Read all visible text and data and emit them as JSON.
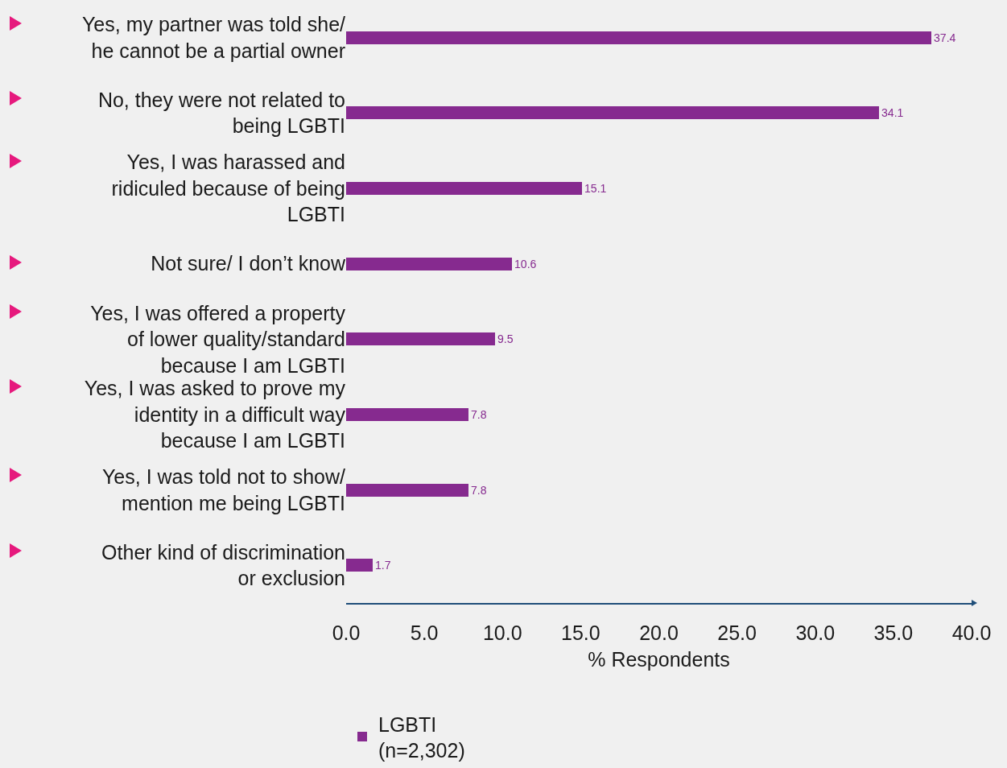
{
  "chart_data": {
    "type": "bar",
    "orientation": "horizontal",
    "xlabel": "% Respondents",
    "categories": [
      "Yes, my partner was told she/ he cannot be a partial owner",
      "No, they were not related to being LGBTI",
      "Yes, I was harassed and ridiculed because of being LGBTI",
      "Not sure/ I don’t know",
      "Yes, I was offered a property of lower quality/standard because I am LGBTI",
      "Yes, I was asked to prove my identity in a difficult way because I am LGBTI",
      "Yes, I was told not to show/ mention me being LGBTI",
      "Other kind of discrimination or exclusion"
    ],
    "series": [
      {
        "name": "LGBTI (n=2,302)",
        "color": "#862a8f",
        "values": [
          37.4,
          34.1,
          15.1,
          10.6,
          9.5,
          7.8,
          7.8,
          1.7
        ]
      }
    ],
    "xlim": [
      0,
      40
    ],
    "xticks": [
      {
        "value": 0,
        "label": "0.0"
      },
      {
        "value": 5,
        "label": "5.0"
      },
      {
        "value": 10,
        "label": "10.0"
      },
      {
        "value": 15,
        "label": "15.0"
      },
      {
        "value": 20,
        "label": "20.0"
      },
      {
        "value": 25,
        "label": "25.0"
      },
      {
        "value": 30,
        "label": "30.0"
      },
      {
        "value": 35,
        "label": "35.0"
      },
      {
        "value": 40,
        "label": "40.0"
      }
    ],
    "data_labels": true,
    "grid": false,
    "legend": "bottom left"
  }
}
